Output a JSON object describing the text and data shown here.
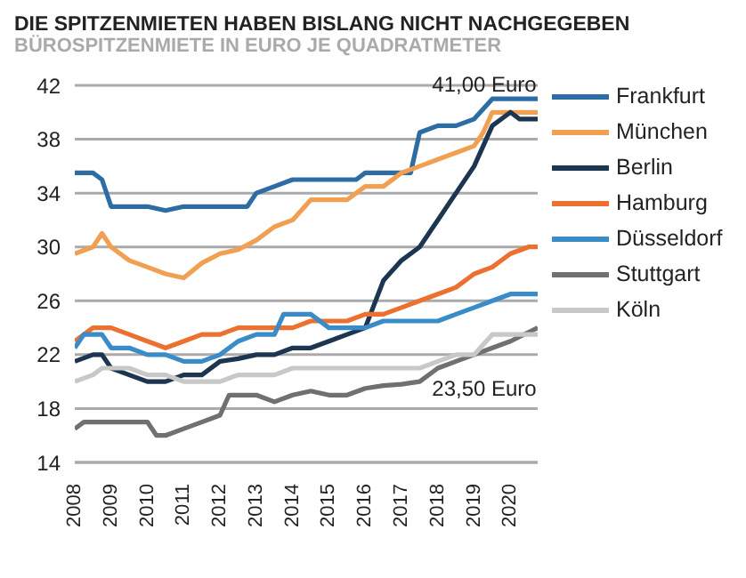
{
  "chart_data": {
    "type": "line",
    "title": "DIE SPITZENMIETEN HABEN BISLANG NICHT NACHGEGEBEN",
    "subtitle": "BÜROSPITZENMIETE IN EURO JE QUADRATMETER",
    "xlim": [
      2008,
      2020.75
    ],
    "xticks": [
      2008,
      2009,
      2010,
      2011,
      2012,
      2013,
      2014,
      2015,
      2016,
      2017,
      2018,
      2019,
      2020
    ],
    "ylim": [
      14,
      42
    ],
    "yticks": [
      14,
      18,
      22,
      26,
      30,
      34,
      38,
      42
    ],
    "grid": "y",
    "legend": "right",
    "line_style": "solid",
    "marker": "none",
    "annotations": [
      {
        "text": "41,00 Euro",
        "x": 2020.75,
        "y": 41
      },
      {
        "text": "23,50 Euro",
        "x": 2020.75,
        "y": 23.5
      }
    ],
    "series": [
      {
        "name": "Frankfurt",
        "color": "#2e6ca4",
        "x": [
          2008,
          2008.5,
          2008.75,
          2009,
          2010,
          2010.5,
          2011,
          2012,
          2012.75,
          2013,
          2013.5,
          2014,
          2015,
          2015.75,
          2016,
          2017,
          2017.25,
          2017.5,
          2018,
          2018.5,
          2019,
          2019.5,
          2020.75
        ],
        "values": [
          35.5,
          35.5,
          35,
          33,
          33,
          32.7,
          33,
          33,
          33,
          34,
          34.5,
          35,
          35,
          35,
          35.5,
          35.5,
          35.5,
          38.5,
          39,
          39,
          39.5,
          41,
          41
        ]
      },
      {
        "name": "München",
        "color": "#f0a050",
        "x": [
          2008,
          2008.5,
          2008.75,
          2009,
          2009.5,
          2010,
          2010.5,
          2011,
          2011.5,
          2012,
          2012.5,
          2013,
          2013.5,
          2014,
          2014.5,
          2015,
          2015.5,
          2016,
          2016.5,
          2017,
          2017.5,
          2018,
          2018.5,
          2019,
          2019.25,
          2019.5,
          2020,
          2020.75
        ],
        "values": [
          29.5,
          30,
          31,
          30,
          29,
          28.5,
          28,
          27.7,
          28.8,
          29.5,
          29.8,
          30.5,
          31.5,
          32,
          33.5,
          33.5,
          33.5,
          34.5,
          34.5,
          35.5,
          36,
          36.5,
          37,
          37.5,
          38.5,
          40,
          40,
          40
        ]
      },
      {
        "name": "Berlin",
        "color": "#1c3550",
        "x": [
          2008,
          2008.5,
          2008.75,
          2009,
          2009.5,
          2010,
          2010.5,
          2011,
          2011.5,
          2012,
          2012.5,
          2013,
          2013.5,
          2014,
          2014.5,
          2015,
          2015.5,
          2016,
          2016.5,
          2017,
          2017.5,
          2018,
          2018.5,
          2019,
          2019.5,
          2020,
          2020.25,
          2020.75
        ],
        "values": [
          21.5,
          22,
          22,
          21,
          20.5,
          20,
          20,
          20.5,
          20.5,
          21.5,
          21.7,
          22,
          22,
          22.5,
          22.5,
          23,
          23.5,
          24,
          27.5,
          29,
          30,
          32,
          34,
          36,
          39,
          40,
          39.5,
          39.5
        ]
      },
      {
        "name": "Hamburg",
        "color": "#ec7030",
        "x": [
          2008,
          2008.5,
          2009,
          2009.5,
          2010,
          2010.5,
          2011,
          2011.5,
          2012,
          2012.5,
          2013,
          2013.5,
          2014,
          2014.5,
          2015,
          2015.5,
          2016,
          2016.5,
          2017,
          2017.5,
          2018,
          2018.5,
          2019,
          2019.5,
          2020,
          2020.5,
          2020.75
        ],
        "values": [
          23,
          24,
          24,
          23.5,
          23,
          22.5,
          23,
          23.5,
          23.5,
          24,
          24,
          24,
          24,
          24.5,
          24.5,
          24.5,
          25,
          25,
          25.5,
          26,
          26.5,
          27,
          28,
          28.5,
          29.5,
          30,
          30
        ]
      },
      {
        "name": "Düsseldorf",
        "color": "#3a8cc8",
        "x": [
          2008,
          2008.25,
          2008.75,
          2009,
          2009.5,
          2010,
          2010.5,
          2011,
          2011.5,
          2012,
          2012.5,
          2013,
          2013.5,
          2013.75,
          2014.5,
          2015,
          2015.5,
          2016,
          2016.5,
          2017,
          2017.5,
          2018,
          2018.5,
          2019,
          2019.5,
          2020,
          2020.75
        ],
        "values": [
          22.5,
          23.5,
          23.5,
          22.5,
          22.5,
          22,
          22,
          21.5,
          21.5,
          22,
          23,
          23.5,
          23.5,
          25,
          25,
          24,
          24,
          24,
          24.5,
          24.5,
          24.5,
          24.5,
          25,
          25.5,
          26,
          26.5,
          26.5
        ]
      },
      {
        "name": "Stuttgart",
        "color": "#707070",
        "x": [
          2008,
          2008.25,
          2009,
          2010,
          2010.25,
          2010.5,
          2011,
          2011.5,
          2012,
          2012.25,
          2012.75,
          2013,
          2013.5,
          2014,
          2014.5,
          2015,
          2015.5,
          2016,
          2016.5,
          2017,
          2017.5,
          2018,
          2018.5,
          2019,
          2019.5,
          2020,
          2020.75
        ],
        "values": [
          16.5,
          17,
          17,
          17,
          16,
          16,
          16.5,
          17,
          17.5,
          19,
          19,
          19,
          18.5,
          19,
          19.3,
          19,
          19,
          19.5,
          19.7,
          19.8,
          20,
          21,
          21.5,
          22,
          22.5,
          23,
          24
        ]
      },
      {
        "name": "Köln",
        "color": "#c8c8c8",
        "x": [
          2008,
          2008.5,
          2008.75,
          2009,
          2009.5,
          2010,
          2010.5,
          2011,
          2011.5,
          2012,
          2012.5,
          2013,
          2013.5,
          2014,
          2014.5,
          2015,
          2016,
          2016.5,
          2017,
          2017.5,
          2018,
          2018.5,
          2019,
          2019.5,
          2020,
          2020.75
        ],
        "values": [
          20,
          20.5,
          21,
          21,
          21,
          20.5,
          20.5,
          20,
          20,
          20,
          20.5,
          20.5,
          20.5,
          21,
          21,
          21,
          21,
          21,
          21,
          21,
          21.5,
          22,
          22,
          23.5,
          23.5,
          23.5
        ]
      }
    ]
  }
}
